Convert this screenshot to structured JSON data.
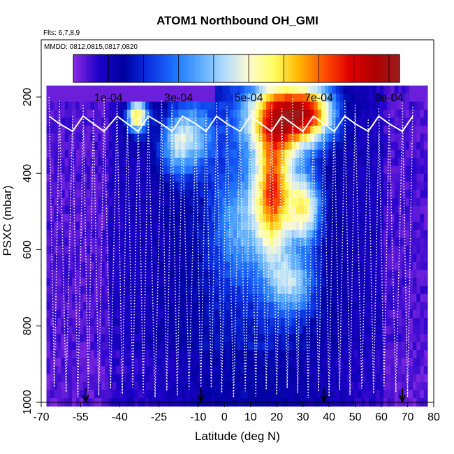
{
  "chart_data": {
    "type": "heatmap",
    "title": "ATOM1 Northbound OH_GMI",
    "flights_note": "Flts: 6,7,8,9",
    "dates_note": "MMDD: 0812,0815,0817,0820",
    "xlabel": "Latitude (deg N)",
    "ylabel": "PSXC (mbar)",
    "xlim": [
      -70,
      80
    ],
    "ylim": [
      1000,
      50
    ],
    "x_ticks": [
      -70,
      -55,
      -40,
      -25,
      -10,
      0,
      10,
      20,
      30,
      40,
      50,
      60,
      70,
      80
    ],
    "x_tick_labels": [
      "-70",
      "-55",
      "-40",
      "-25",
      "-10",
      "0",
      "10",
      "20",
      "30",
      "40",
      "50",
      "60",
      "70",
      "80"
    ],
    "y_ticks": [
      200,
      400,
      600,
      800,
      1000
    ],
    "y_tick_labels": [
      "200",
      "400",
      "600",
      "800",
      "1000"
    ],
    "colorbar": {
      "min": 0,
      "max": 0.00093,
      "tick_values": [
        0.0001,
        0.0003,
        0.0005,
        0.0007,
        0.0009
      ],
      "tick_labels": [
        "1e-04",
        "3e-04",
        "5e-04",
        "7e-04",
        "9e-04"
      ],
      "colors": [
        "#8a2be2",
        "#1e00c8",
        "#0000a0",
        "#0a30e0",
        "#1e70ff",
        "#55a8ff",
        "#b0dcff",
        "#fffad0",
        "#ffff60",
        "#ffb400",
        "#ff5000",
        "#e00000",
        "#b00000",
        "#9b1c1c"
      ]
    },
    "heatmap_extent": {
      "lat": [
        -68,
        77
      ],
      "pressure": [
        170,
        1000
      ]
    },
    "heatmap_centers": [
      {
        "lat": 22,
        "p": 240,
        "amp": 0.0006,
        "slat": 14,
        "sp": 90
      },
      {
        "lat": 33,
        "p": 230,
        "amp": 0.00032,
        "slat": 9,
        "sp": 70
      },
      {
        "lat": 18,
        "p": 440,
        "amp": 0.00055,
        "slat": 7,
        "sp": 160
      },
      {
        "lat": 30,
        "p": 480,
        "amp": 0.0004,
        "slat": 6,
        "sp": 90
      },
      {
        "lat": 25,
        "p": 680,
        "amp": 0.00026,
        "slat": 9,
        "sp": 80
      },
      {
        "lat": -34,
        "p": 240,
        "amp": 0.00052,
        "slat": 4,
        "sp": 45
      },
      {
        "lat": -13,
        "p": 290,
        "amp": 0.00025,
        "slat": 8,
        "sp": 90
      },
      {
        "lat": -20,
        "p": 320,
        "amp": 0.0002,
        "slat": 6,
        "sp": 80
      },
      {
        "lat": 5,
        "p": 520,
        "amp": 0.00018,
        "slat": 10,
        "sp": 150
      }
    ],
    "sounding_latitudes": [
      -67,
      -63,
      -58,
      -54,
      -50,
      -46,
      -41,
      -37,
      -33,
      -29,
      -24,
      -20,
      -16,
      -11,
      -7,
      -3,
      1,
      6,
      10,
      14,
      18,
      22,
      26,
      30,
      34,
      38,
      42,
      46,
      50,
      55,
      59,
      63,
      68,
      72
    ],
    "mean_profile_pressure": 270,
    "markers": [
      -53,
      -9,
      38,
      68
    ]
  }
}
